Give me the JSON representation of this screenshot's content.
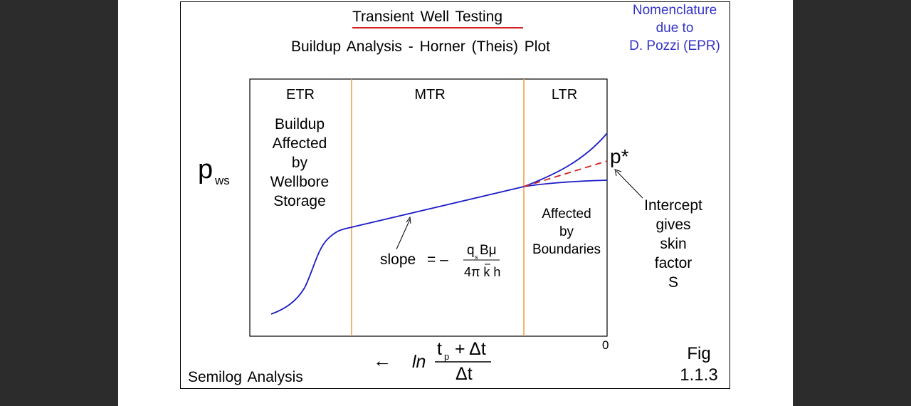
{
  "title": "Transient Well Testing",
  "subtitle": "Buildup Analysis - Horner (Theis) Plot",
  "nomenclature": {
    "line1": "Nomenclature",
    "line2": "due to",
    "line3": "D. Pozzi (EPR)"
  },
  "regions": {
    "etr": "ETR",
    "mtr": "MTR",
    "ltr": "LTR"
  },
  "etr_note": [
    "Buildup",
    "Affected",
    "by",
    "Wellbore",
    "Storage"
  ],
  "ltr_note": [
    "Affected",
    "by",
    "Boundaries"
  ],
  "y_axis": {
    "symbol": "p",
    "subscript": "ws"
  },
  "slope": {
    "label": "slope",
    "equals": "= –",
    "numerator": "q",
    "numerator_sub": "s",
    "numerator_rest": "Bμ",
    "denominator": "4π k h"
  },
  "pstar": "p*",
  "intercept_note": [
    "Intercept",
    "gives",
    "skin",
    "factor",
    "S"
  ],
  "x_axis": {
    "arrow": "←",
    "ln": "ln",
    "num_t": "t",
    "num_sub": "p",
    "num_rest": "+ Δt",
    "den": "Δt",
    "zero": "0"
  },
  "footer_left": "Semilog Analysis",
  "fig": {
    "line1": "Fig",
    "line2": "1.1.3"
  },
  "colors": {
    "curve": "#1c1cc8",
    "extrapolation": "#d42020",
    "region_divider": "#f0a050",
    "nomenclature": "#3232c8"
  }
}
